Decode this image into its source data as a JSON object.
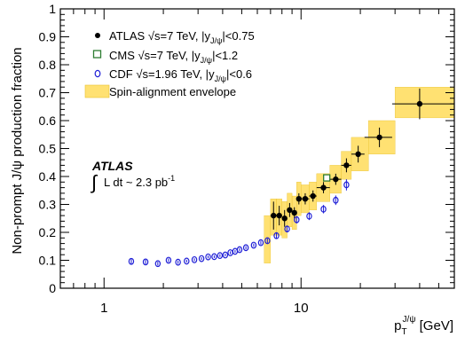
{
  "chart_data": {
    "type": "scatter",
    "x_scale": "log",
    "xlim": [
      0.6,
      60
    ],
    "ylim": [
      0,
      1
    ],
    "xlabel": "p_T^{J/ψ} [GeV]",
    "ylabel": "Non-prompt J/ψ production fraction",
    "x_ticks": [
      {
        "value": 1,
        "label": "1"
      },
      {
        "value": 10,
        "label": "10"
      }
    ],
    "y_ticks": [
      "0",
      "0.1",
      "0.2",
      "0.3",
      "0.4",
      "0.5",
      "0.6",
      "0.7",
      "0.8",
      "0.9",
      "1"
    ],
    "annotation": {
      "experiment": "ATLAS",
      "lumi_prefix": "L dt ~ 2.3 pb",
      "lumi_exp": "-1"
    },
    "legend": [
      {
        "key": "atlas",
        "parts": [
          "ATLAS ",
          "√",
          "s=7 TeV,   |y",
          "J/ψ",
          "|<0.75"
        ]
      },
      {
        "key": "cms",
        "parts": [
          "CMS ",
          "√",
          "s=7 TeV,   |y",
          "J/ψ",
          "|<1.2"
        ]
      },
      {
        "key": "cdf",
        "parts": [
          "CDF ",
          "√",
          "s=1.96 TeV,  |y",
          "J/ψ",
          "|<0.6"
        ]
      },
      {
        "key": "envelope",
        "parts": [
          "Spin-alignment envelope"
        ]
      }
    ],
    "series": [
      {
        "name": "ATLAS",
        "marker": "filled-circle",
        "color": "#000000",
        "points": [
          {
            "x": 7.25,
            "y": 0.26,
            "xerr": [
              0.25,
              0.25
            ],
            "yerr": 0.05
          },
          {
            "x": 7.75,
            "y": 0.26,
            "xerr": [
              0.25,
              0.25
            ],
            "yerr": 0.035
          },
          {
            "x": 8.25,
            "y": 0.25,
            "xerr": [
              0.25,
              0.25
            ],
            "yerr": 0.03
          },
          {
            "x": 8.75,
            "y": 0.28,
            "xerr": [
              0.25,
              0.25
            ],
            "yerr": 0.025
          },
          {
            "x": 9.25,
            "y": 0.27,
            "xerr": [
              0.25,
              0.25
            ],
            "yerr": 0.02
          },
          {
            "x": 9.75,
            "y": 0.32,
            "xerr": [
              0.25,
              0.25
            ],
            "yerr": 0.02
          },
          {
            "x": 10.5,
            "y": 0.32,
            "xerr": [
              0.5,
              0.5
            ],
            "yerr": 0.02
          },
          {
            "x": 11.5,
            "y": 0.33,
            "xerr": [
              0.5,
              0.5
            ],
            "yerr": 0.02
          },
          {
            "x": 13.0,
            "y": 0.36,
            "xerr": [
              1.0,
              1.0
            ],
            "yerr": 0.02
          },
          {
            "x": 15.0,
            "y": 0.39,
            "xerr": [
              1.0,
              1.0
            ],
            "yerr": 0.02
          },
          {
            "x": 17.0,
            "y": 0.44,
            "xerr": [
              1.0,
              1.0
            ],
            "yerr": 0.025
          },
          {
            "x": 19.5,
            "y": 0.48,
            "xerr": [
              1.5,
              1.5
            ],
            "yerr": 0.03
          },
          {
            "x": 25.0,
            "y": 0.54,
            "xerr": [
              4.0,
              4.0
            ],
            "yerr": 0.035
          },
          {
            "x": 40.0,
            "y": 0.66,
            "xerr": [
              11.0,
              20.0
            ],
            "yerr": 0.055
          }
        ]
      },
      {
        "name": "CMS",
        "marker": "open-square",
        "color": "#2e7d32",
        "points": [
          {
            "x": 13.5,
            "y": 0.395,
            "xerr": [
              0.3,
              0.3
            ],
            "yerr": 0.0
          }
        ]
      },
      {
        "name": "CDF",
        "marker": "open-circle",
        "color": "#1f1fd6",
        "points": [
          {
            "x": 1.375,
            "y": 0.096,
            "yerr": 0.012
          },
          {
            "x": 1.625,
            "y": 0.094,
            "yerr": 0.008
          },
          {
            "x": 1.875,
            "y": 0.088,
            "yerr": 0.007
          },
          {
            "x": 2.125,
            "y": 0.1,
            "yerr": 0.007
          },
          {
            "x": 2.375,
            "y": 0.093,
            "yerr": 0.006
          },
          {
            "x": 2.625,
            "y": 0.097,
            "yerr": 0.005
          },
          {
            "x": 2.875,
            "y": 0.102,
            "yerr": 0.005
          },
          {
            "x": 3.125,
            "y": 0.106,
            "yerr": 0.005
          },
          {
            "x": 3.375,
            "y": 0.112,
            "yerr": 0.005
          },
          {
            "x": 3.625,
            "y": 0.113,
            "yerr": 0.005
          },
          {
            "x": 3.875,
            "y": 0.117,
            "yerr": 0.005
          },
          {
            "x": 4.125,
            "y": 0.119,
            "yerr": 0.005
          },
          {
            "x": 4.375,
            "y": 0.127,
            "yerr": 0.005
          },
          {
            "x": 4.625,
            "y": 0.132,
            "yerr": 0.005
          },
          {
            "x": 4.875,
            "y": 0.138,
            "yerr": 0.006
          },
          {
            "x": 5.25,
            "y": 0.145,
            "yerr": 0.006
          },
          {
            "x": 5.75,
            "y": 0.154,
            "yerr": 0.006
          },
          {
            "x": 6.25,
            "y": 0.163,
            "yerr": 0.007
          },
          {
            "x": 6.75,
            "y": 0.17,
            "yerr": 0.008
          },
          {
            "x": 7.5,
            "y": 0.188,
            "yerr": 0.01
          },
          {
            "x": 8.5,
            "y": 0.212,
            "yerr": 0.012
          },
          {
            "x": 9.5,
            "y": 0.245,
            "yerr": 0.013
          },
          {
            "x": 11.0,
            "y": 0.258,
            "yerr": 0.014
          },
          {
            "x": 13.0,
            "y": 0.283,
            "yerr": 0.015
          },
          {
            "x": 15.0,
            "y": 0.315,
            "yerr": 0.017
          },
          {
            "x": 17.0,
            "y": 0.37,
            "yerr": 0.02
          }
        ]
      },
      {
        "name": "Spin-alignment envelope",
        "marker": "band",
        "color": "#ffd84a",
        "bands": [
          {
            "x": [
              6.5,
              7.0
            ],
            "y": [
              0.09,
              0.26
            ]
          },
          {
            "x": [
              7.0,
              7.5
            ],
            "y": [
              0.19,
              0.32
            ]
          },
          {
            "x": [
              7.5,
              8.0
            ],
            "y": [
              0.19,
              0.32
            ]
          },
          {
            "x": [
              8.0,
              8.5
            ],
            "y": [
              0.18,
              0.31
            ]
          },
          {
            "x": [
              8.5,
              9.0
            ],
            "y": [
              0.22,
              0.34
            ]
          },
          {
            "x": [
              9.0,
              9.5
            ],
            "y": [
              0.21,
              0.33
            ]
          },
          {
            "x": [
              9.5,
              10.0
            ],
            "y": [
              0.26,
              0.38
            ]
          },
          {
            "x": [
              10.0,
              11.0
            ],
            "y": [
              0.27,
              0.37
            ]
          },
          {
            "x": [
              11.0,
              12.0
            ],
            "y": [
              0.28,
              0.38
            ]
          },
          {
            "x": [
              12.0,
              14.0
            ],
            "y": [
              0.31,
              0.41
            ]
          },
          {
            "x": [
              14.0,
              16.0
            ],
            "y": [
              0.34,
              0.44
            ]
          },
          {
            "x": [
              16.0,
              18.0
            ],
            "y": [
              0.39,
              0.49
            ]
          },
          {
            "x": [
              18.0,
              22.0
            ],
            "y": [
              0.42,
              0.54
            ]
          },
          {
            "x": [
              22.0,
              30.0
            ],
            "y": [
              0.48,
              0.6
            ]
          },
          {
            "x": [
              30.0,
              60.0
            ],
            "y": [
              0.61,
              0.72
            ]
          }
        ]
      }
    ]
  }
}
